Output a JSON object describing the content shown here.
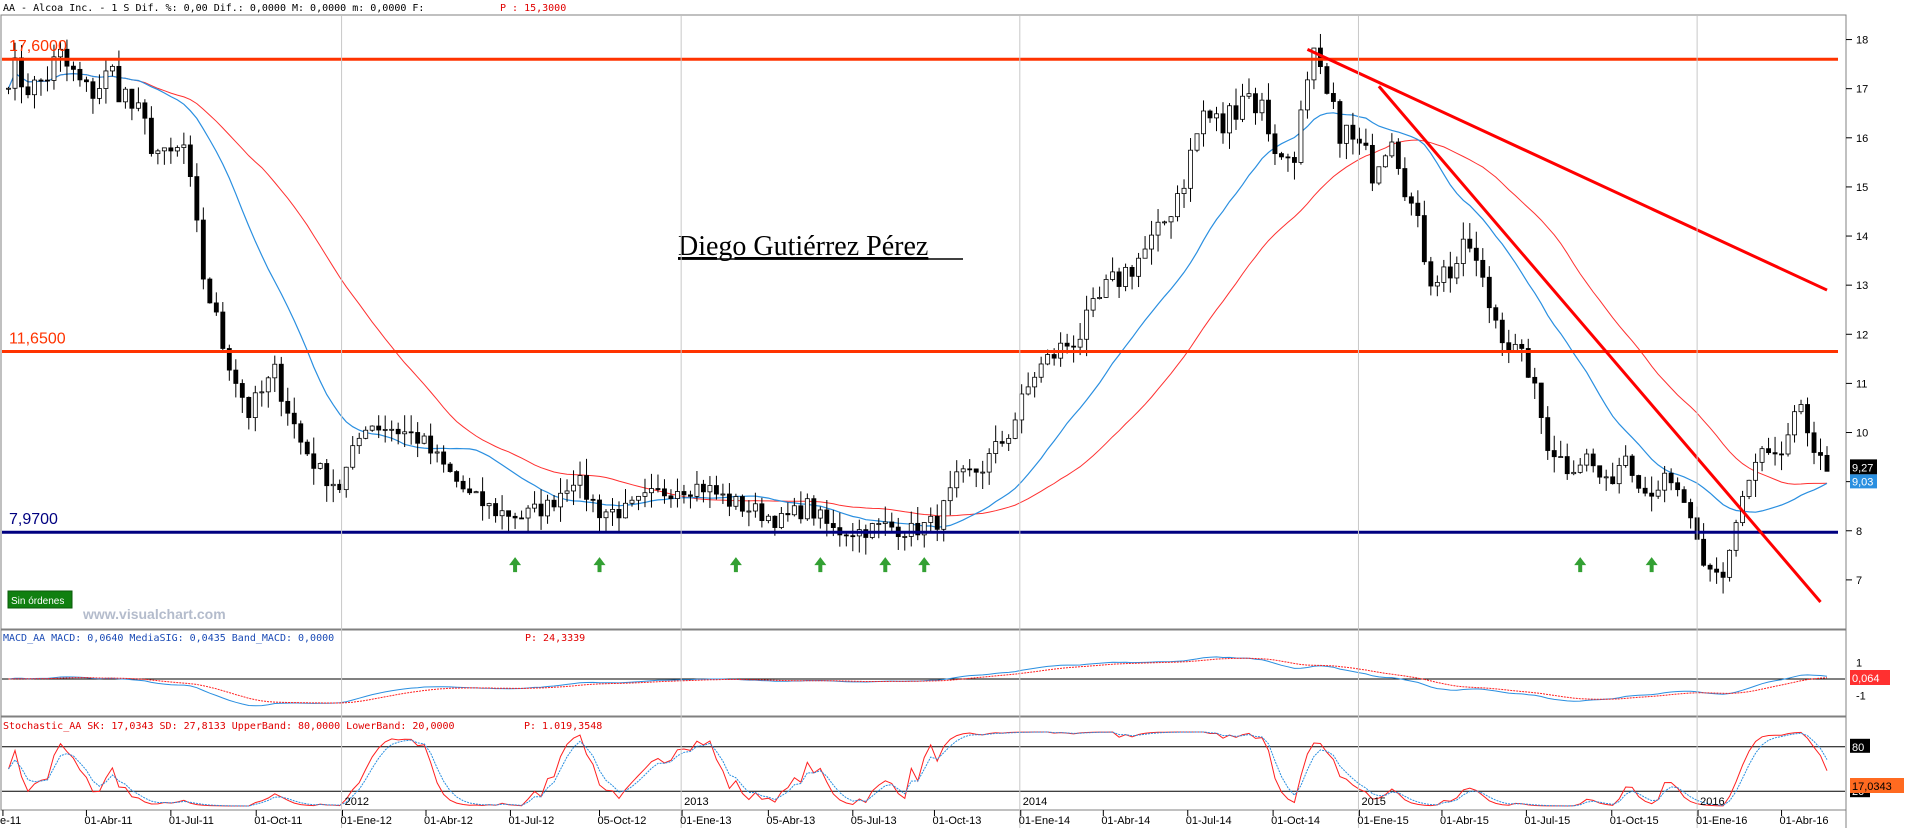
{
  "header": {
    "main": "AA - Alcoa Inc. -  1 S Dif. %: 0,00 Dif.: 0,0000 M: 0,0000 m: 0,0000 F:",
    "price": "P : 15,3000"
  },
  "watermark": "Diego Gutiérrez Pérez",
  "site": "www.visualchart.com",
  "orders_button": "Sin órdenes",
  "colors": {
    "candle_up": "#ffffff",
    "candle_down": "#000000",
    "support_line": "#000080",
    "resistance_line": "#ff3300",
    "trend_line": "#ff0000",
    "ma_long": "#ff3030",
    "ma_short": "#2a8fe0",
    "arrow": "#33a033"
  },
  "chart_data": [
    {
      "type": "line",
      "panel": "price",
      "title": "",
      "instrument": "AA - Alcoa Inc.",
      "ylim": [
        6,
        18.5
      ],
      "yticks": [
        "18",
        "17",
        "16",
        "15",
        "14",
        "13",
        "12",
        "11",
        "10",
        "9",
        "8",
        "7"
      ],
      "price_badge": "9,27",
      "ma_badge": "9,03",
      "levels": [
        {
          "value": 17.6,
          "label": "17,6000",
          "color": "#ff3300"
        },
        {
          "value": 11.65,
          "label": "11,6500",
          "color": "#ff3300"
        },
        {
          "value": 7.97,
          "label": "7,9700",
          "color": "#000080"
        }
      ],
      "trendlines": [
        {
          "from": [
            "2014-11-07",
            17.8
          ],
          "to": [
            "2016-05-20",
            12.9
          ]
        },
        {
          "from": [
            "2015-01-23",
            17.05
          ],
          "to": [
            "2016-05-13",
            6.55
          ]
        }
      ],
      "weekly_close_anchors": [
        [
          "2011-01-07",
          17.4
        ],
        [
          "2011-02-04",
          17.0
        ],
        [
          "2011-03-04",
          17.6
        ],
        [
          "2011-04-01",
          16.9
        ],
        [
          "2011-04-29",
          17.3
        ],
        [
          "2011-05-27",
          16.4
        ],
        [
          "2011-06-24",
          15.5
        ],
        [
          "2011-07-15",
          15.8
        ],
        [
          "2011-08-05",
          13.2
        ],
        [
          "2011-08-26",
          11.8
        ],
        [
          "2011-09-23",
          10.4
        ],
        [
          "2011-10-21",
          11.2
        ],
        [
          "2011-11-18",
          9.8
        ],
        [
          "2011-12-09",
          9.2
        ],
        [
          "2011-12-30",
          8.9
        ],
        [
          "2012-01-27",
          10.2
        ],
        [
          "2012-02-24",
          10.1
        ],
        [
          "2012-03-23",
          9.9
        ],
        [
          "2012-04-20",
          9.3
        ],
        [
          "2012-05-18",
          8.7
        ],
        [
          "2012-06-15",
          8.4
        ],
        [
          "2012-07-13",
          8.3
        ],
        [
          "2012-08-10",
          8.5
        ],
        [
          "2012-09-07",
          9.1
        ],
        [
          "2012-10-05",
          8.4
        ],
        [
          "2012-11-02",
          8.4
        ],
        [
          "2012-11-30",
          8.7
        ],
        [
          "2012-12-28",
          8.9
        ],
        [
          "2013-01-25",
          8.9
        ],
        [
          "2013-02-22",
          8.6
        ],
        [
          "2013-03-22",
          8.4
        ],
        [
          "2013-04-19",
          8.2
        ],
        [
          "2013-05-17",
          8.5
        ],
        [
          "2013-06-14",
          8.0
        ],
        [
          "2013-07-12",
          8.0
        ],
        [
          "2013-08-09",
          8.1
        ],
        [
          "2013-09-06",
          8.0
        ],
        [
          "2013-10-04",
          8.2
        ],
        [
          "2013-10-25",
          9.0
        ],
        [
          "2013-11-22",
          9.3
        ],
        [
          "2013-12-20",
          10.0
        ],
        [
          "2014-01-17",
          11.2
        ],
        [
          "2014-02-07",
          11.6
        ],
        [
          "2014-03-07",
          12.0
        ],
        [
          "2014-04-04",
          12.9
        ],
        [
          "2014-05-02",
          13.4
        ],
        [
          "2014-05-30",
          14.0
        ],
        [
          "2014-06-27",
          15.2
        ],
        [
          "2014-07-18",
          16.5
        ],
        [
          "2014-08-08",
          16.2
        ],
        [
          "2014-08-29",
          17.0
        ],
        [
          "2014-09-19",
          16.6
        ],
        [
          "2014-10-10",
          15.5
        ],
        [
          "2014-10-24",
          15.8
        ],
        [
          "2014-11-14",
          17.5
        ],
        [
          "2014-12-05",
          16.4
        ],
        [
          "2014-12-26",
          15.9
        ],
        [
          "2015-01-16",
          15.4
        ],
        [
          "2015-02-06",
          16.2
        ],
        [
          "2015-02-27",
          14.6
        ],
        [
          "2015-03-20",
          13.2
        ],
        [
          "2015-04-10",
          13.3
        ],
        [
          "2015-05-01",
          13.8
        ],
        [
          "2015-05-22",
          12.6
        ],
        [
          "2015-06-12",
          11.8
        ],
        [
          "2015-07-03",
          11.3
        ],
        [
          "2015-07-24",
          9.8
        ],
        [
          "2015-08-14",
          9.3
        ],
        [
          "2015-09-04",
          9.5
        ],
        [
          "2015-09-25",
          8.9
        ],
        [
          "2015-10-16",
          9.6
        ],
        [
          "2015-11-06",
          8.8
        ],
        [
          "2015-11-27",
          9.0
        ],
        [
          "2015-12-18",
          8.6
        ],
        [
          "2016-01-08",
          7.2
        ],
        [
          "2016-01-29",
          7.1
        ],
        [
          "2016-02-19",
          8.7
        ],
        [
          "2016-03-11",
          9.6
        ],
        [
          "2016-04-01",
          9.4
        ],
        [
          "2016-04-22",
          10.6
        ],
        [
          "2016-05-06",
          9.4
        ],
        [
          "2016-05-20",
          9.27
        ]
      ],
      "arrows": [
        "2012-07-06",
        "2012-10-05",
        "2013-03-01",
        "2013-05-31",
        "2013-08-09",
        "2013-09-20",
        "2015-08-28",
        "2015-11-13"
      ]
    },
    {
      "type": "line",
      "panel": "macd",
      "title": "",
      "header": "MACD_AA MACD: 0,0640 MediaSIG: 0,0435 Band_MACD: 0,0000",
      "header_price": "P: 24,3339",
      "ylim": [
        -2,
        2
      ],
      "yticks": [
        "1",
        "0",
        "-1"
      ],
      "badge": "0,064"
    },
    {
      "type": "line",
      "panel": "stochastic",
      "title": "",
      "header": "Stochastic_AA SK: 17,0343 SD: 27,8133 UpperBand: 80,0000 LowerBand: 20,0000",
      "header_price": "P: 1.019,3548",
      "ylim": [
        0,
        100
      ],
      "bands": [
        80,
        20
      ],
      "yticks": [
        "80",
        "20"
      ],
      "badge": "17,0343"
    }
  ],
  "x_axis": {
    "start": "2010-12-31",
    "end": "2016-06-03",
    "ticks": [
      {
        "date": "2011-01-01",
        "label": "e-11"
      },
      {
        "date": "2011-04-01",
        "label": "01-Abr-11"
      },
      {
        "date": "2011-07-01",
        "label": "01-Jul-11"
      },
      {
        "date": "2011-10-01",
        "label": "01-Oct-11"
      },
      {
        "date": "2012-01-01",
        "label": "2012"
      },
      {
        "date": "2012-01-02",
        "label": "01-Ene-12"
      },
      {
        "date": "2012-04-01",
        "label": "01-Abr-12"
      },
      {
        "date": "2012-07-01",
        "label": "01-Jul-12"
      },
      {
        "date": "2012-10-05",
        "label": "05-Oct-12"
      },
      {
        "date": "2013-01-01",
        "label": "2013"
      },
      {
        "date": "2013-01-02",
        "label": "01-Ene-13"
      },
      {
        "date": "2013-04-05",
        "label": "05-Abr-13"
      },
      {
        "date": "2013-07-05",
        "label": "05-Jul-13"
      },
      {
        "date": "2013-10-01",
        "label": "01-Oct-13"
      },
      {
        "date": "2014-01-01",
        "label": "2014"
      },
      {
        "date": "2014-01-02",
        "label": "01-Ene-14"
      },
      {
        "date": "2014-04-01",
        "label": "01-Abr-14"
      },
      {
        "date": "2014-07-01",
        "label": "01-Jul-14"
      },
      {
        "date": "2014-10-01",
        "label": "01-Oct-14"
      },
      {
        "date": "2015-01-01",
        "label": "2015"
      },
      {
        "date": "2015-01-02",
        "label": "01-Ene-15"
      },
      {
        "date": "2015-04-01",
        "label": "01-Abr-15"
      },
      {
        "date": "2015-07-01",
        "label": "01-Jul-15"
      },
      {
        "date": "2015-10-01",
        "label": "01-Oct-15"
      },
      {
        "date": "2016-01-01",
        "label": "2016"
      },
      {
        "date": "2016-01-02",
        "label": "01-Ene-16"
      },
      {
        "date": "2016-04-01",
        "label": "01-Abr-16"
      }
    ]
  }
}
